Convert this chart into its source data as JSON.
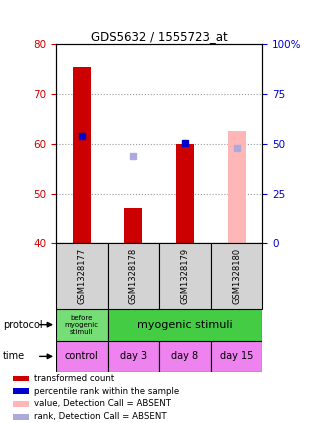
{
  "title": "GDS5632 / 1555723_at",
  "samples": [
    "GSM1328177",
    "GSM1328178",
    "GSM1328179",
    "GSM1328180"
  ],
  "bar_values": [
    75.5,
    47.0,
    60.0,
    null
  ],
  "bar_color": "#cc0000",
  "absent_bar_values": [
    null,
    null,
    null,
    62.5
  ],
  "absent_bar_color": "#ffb6b6",
  "rank_values": [
    61.5,
    null,
    60.2,
    null
  ],
  "rank_color": "#0000cc",
  "rank_absent_values": [
    null,
    57.5,
    null,
    59.2
  ],
  "rank_absent_color": "#aaaadd",
  "ylim_left": [
    40,
    80
  ],
  "ylim_right": [
    0,
    100
  ],
  "yticks_left": [
    40,
    50,
    60,
    70,
    80
  ],
  "yticks_right": [
    0,
    25,
    50,
    75,
    100
  ],
  "ytick_labels_right": [
    "0",
    "25",
    "50",
    "75",
    "100%"
  ],
  "bar_width": 0.35,
  "time_labels": [
    "control",
    "day 3",
    "day 8",
    "day 15"
  ],
  "time_color": "#ee82ee",
  "protocol_color_before": "#77dd77",
  "protocol_color_after": "#44cc44",
  "legend_items": [
    {
      "color": "#cc0000",
      "label": "transformed count"
    },
    {
      "color": "#0000cc",
      "label": "percentile rank within the sample"
    },
    {
      "color": "#ffb6b6",
      "label": "value, Detection Call = ABSENT"
    },
    {
      "color": "#aaaadd",
      "label": "rank, Detection Call = ABSENT"
    }
  ],
  "left_axis_color": "#cc0000",
  "right_axis_color": "#0000cc"
}
